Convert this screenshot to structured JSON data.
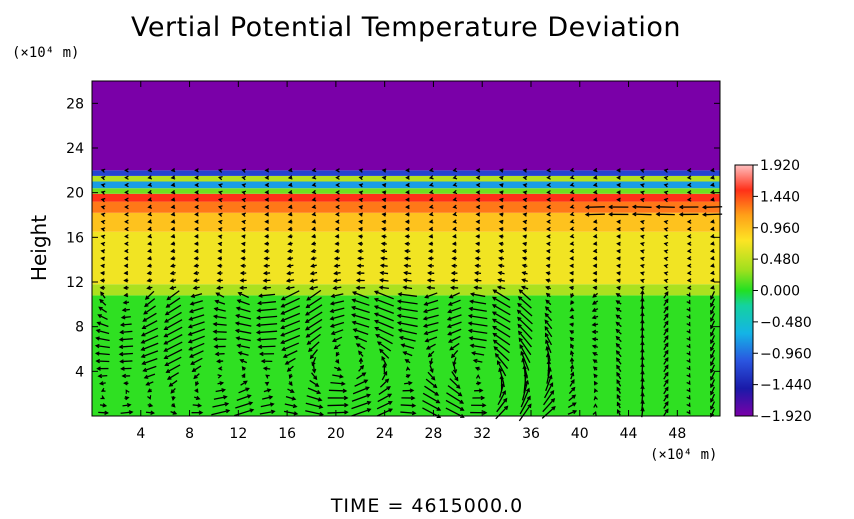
{
  "chart_data": {
    "type": "heatmap",
    "title": "Vertial Potential Temperature Deviation",
    "ylabel": "Height",
    "y_unit": "(×10⁴ m)",
    "x_unit": "(×10⁴ m)",
    "footer": "TIME = 4615000.0",
    "xlim": [
      0,
      51.5
    ],
    "ylim": [
      0,
      30
    ],
    "x_ticks": [
      "4",
      "8",
      "12",
      "16",
      "20",
      "24",
      "28",
      "32",
      "36",
      "40",
      "44",
      "48"
    ],
    "x_tick_values": [
      4,
      8,
      12,
      16,
      20,
      24,
      28,
      32,
      36,
      40,
      44,
      48
    ],
    "y_ticks": [
      "4",
      "8",
      "12",
      "16",
      "20",
      "24",
      "28"
    ],
    "y_tick_values": [
      4,
      8,
      12,
      16,
      20,
      24,
      28
    ],
    "colorbar": {
      "labels": [
        "1.920",
        "1.440",
        "0.960",
        "0.480",
        "0.000",
        "−0.480",
        "−0.960",
        "−1.440",
        "−1.920"
      ],
      "values": [
        1.92,
        1.44,
        0.96,
        0.48,
        0.0,
        -0.48,
        -0.96,
        -1.44,
        -1.92
      ],
      "range": [
        -1.92,
        1.92
      ]
    },
    "bands": [
      {
        "from": 0,
        "to": 10.8,
        "value": 0.05
      },
      {
        "from": 10.8,
        "to": 11.8,
        "value": 0.55
      },
      {
        "from": 11.8,
        "to": 16.5,
        "value": 0.9
      },
      {
        "from": 16.5,
        "to": 18.2,
        "value": 1.2
      },
      {
        "from": 18.2,
        "to": 19.2,
        "value": 1.55
      },
      {
        "from": 19.2,
        "to": 19.9,
        "value": 1.75
      },
      {
        "from": 19.9,
        "to": 20.4,
        "value": 0.3
      },
      {
        "from": 20.4,
        "to": 21.0,
        "value": -0.6
      },
      {
        "from": 21.0,
        "to": 21.5,
        "value": 0.6
      },
      {
        "from": 21.5,
        "to": 22.0,
        "value": -1.1
      },
      {
        "from": 22.0,
        "to": 30,
        "value": -1.92
      }
    ],
    "vortex_centers": [
      {
        "x": 2,
        "y": 1.5
      },
      {
        "x": 13,
        "y": 3.5
      },
      {
        "x": 23,
        "y": 5
      },
      {
        "x": 33,
        "y": 3.5
      }
    ]
  }
}
